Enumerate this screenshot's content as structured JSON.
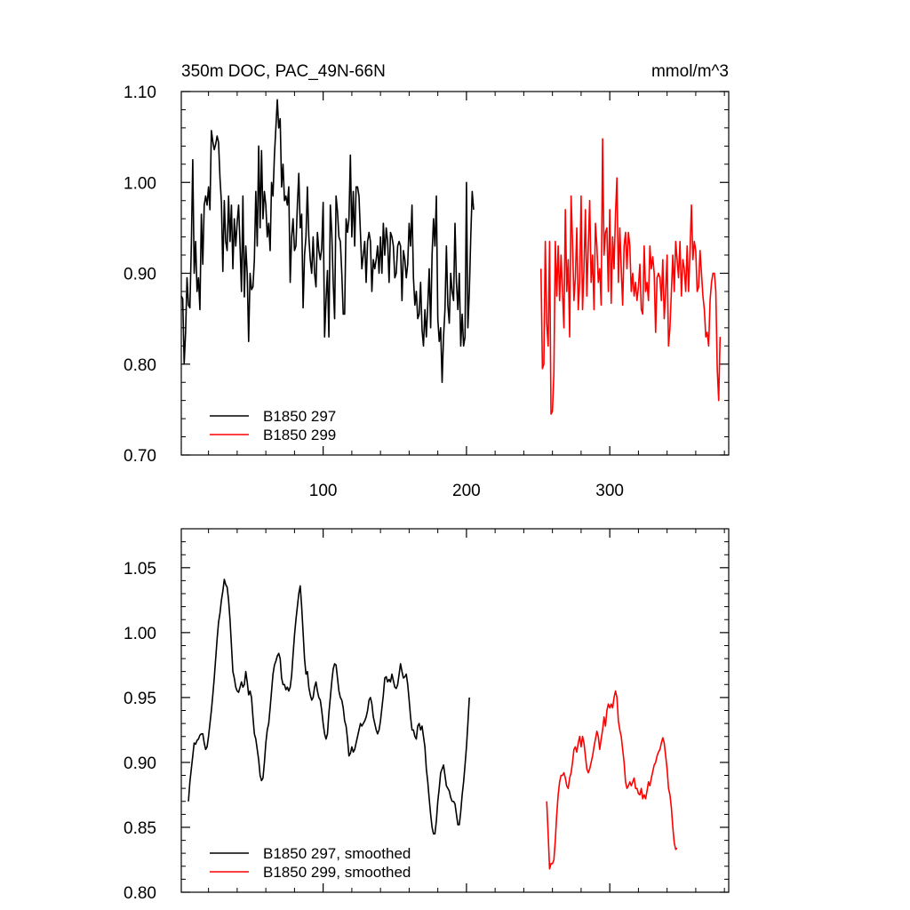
{
  "chart_data": [
    {
      "type": "line",
      "title": "350m DOC, PAC_49N-66N",
      "units": "mmol/m^3",
      "xlim": [
        1,
        383
      ],
      "ylim": [
        0.7,
        1.1
      ],
      "xticks": [
        100,
        200,
        300
      ],
      "xtick_labels": [
        "100",
        "200",
        "300"
      ],
      "yticks": [
        0.7,
        0.8,
        0.9,
        1.0,
        1.1
      ],
      "ytick_labels": [
        "0.70",
        "0.80",
        "0.90",
        "1.00",
        "1.10"
      ],
      "grid": false,
      "legend_position": "bottom-left",
      "series": [
        {
          "name": "B1850 297",
          "color": "#000000",
          "x_start": 1,
          "values": [
            0.875,
            0.872,
            0.8,
            0.835,
            0.895,
            0.865,
            0.862,
            0.93,
            1.025,
            0.9,
            0.935,
            0.88,
            0.895,
            0.86,
            0.965,
            0.91,
            0.975,
            0.985,
            0.975,
            0.995,
            0.97,
            1.057,
            1.045,
            1.036,
            1.042,
            1.051,
            1.044,
            1.005,
            0.978,
            0.902,
            0.98,
            0.935,
            0.925,
            0.985,
            0.935,
            0.975,
            0.905,
            0.96,
            0.93,
            0.956,
            0.975,
            0.93,
            0.88,
            0.985,
            0.874,
            0.93,
            0.9,
            0.825,
            0.9,
            0.882,
            0.885,
            0.915,
            0.99,
            0.93,
            1.04,
            0.95,
            1.035,
            0.96,
            0.99,
            0.975,
            0.94,
            0.955,
            0.925,
            1.0,
            0.985,
            1.03,
            1.06,
            1.091,
            1.06,
            1.07,
            0.995,
            1.02,
            0.98,
            0.985,
            0.975,
            0.995,
            0.89,
            0.94,
            0.96,
            0.925,
            0.93,
            0.975,
            1.01,
            0.95,
            0.965,
            0.862,
            0.92,
            0.94,
            0.995,
            0.94,
            0.915,
            0.9,
            0.94,
            0.9,
            0.885,
            0.945,
            0.925,
            0.915,
            0.928,
            0.978,
            0.83,
            0.87,
            0.903,
            0.83,
            0.975,
            0.945,
            0.89,
            0.85,
            0.985,
            0.968,
            0.94,
            0.935,
            0.9,
            0.855,
            0.855,
            0.96,
            0.945,
            0.96,
            1.03,
            0.94,
            0.99,
            0.93,
            0.995,
            0.995,
            0.985,
            0.945,
            0.905,
            0.92,
            0.935,
            0.89,
            0.935,
            0.945,
            0.935,
            0.88,
            0.915,
            0.905,
            0.915,
            0.93,
            0.9,
            0.94,
            0.9,
            0.955,
            0.92,
            0.95,
            0.935,
            0.89,
            0.945,
            0.94,
            0.93,
            0.895,
            0.9,
            0.93,
            0.935,
            0.93,
            0.87,
            0.925,
            0.915,
            0.895,
            0.91,
            0.955,
            0.93,
            0.975,
            0.895,
            0.865,
            0.88,
            0.85,
            0.855,
            0.89,
            0.838,
            0.82,
            0.86,
            0.83,
            0.865,
            0.905,
            0.84,
            0.92,
            0.96,
            0.93,
            0.985,
            0.85,
            0.825,
            0.84,
            0.78,
            0.83,
            0.86,
            0.93,
            0.865,
            0.845,
            0.9,
            0.88,
            0.87,
            0.955,
            0.89,
            0.86,
            0.9,
            0.82,
            0.855,
            0.82,
            0.83,
            1.0,
            0.84,
            0.88,
            0.94,
            0.99,
            0.97
          ],
          "x_offset": 0
        },
        {
          "name": "B1850 299",
          "color": "#ff0000",
          "x_start": 252,
          "values": [
            0.905,
            0.795,
            0.8,
            0.935,
            0.845,
            0.82,
            0.935,
            0.745,
            0.748,
            0.79,
            0.935,
            0.875,
            0.93,
            0.87,
            0.92,
            0.88,
            0.84,
            0.97,
            0.88,
            0.915,
            0.83,
            0.985,
            0.935,
            0.87,
            0.895,
            0.95,
            0.86,
            0.89,
            0.985,
            0.86,
            0.905,
            0.97,
            0.875,
            0.93,
            0.98,
            0.89,
            0.92,
            0.86,
            0.955,
            0.93,
            0.89,
            0.905,
            0.865,
            1.048,
            0.92,
            0.945,
            0.95,
            0.88,
            0.97,
            0.867,
            0.94,
            0.905,
            0.965,
            1.005,
            0.89,
            0.95,
            0.905,
            0.865,
            0.93,
            0.945,
            0.905,
            0.945,
            0.93,
            0.88,
            0.9,
            0.875,
            0.89,
            0.87,
            0.885,
            0.91,
            0.86,
            0.855,
            0.93,
            0.88,
            0.89,
            0.87,
            0.93,
            0.905,
            0.918,
            0.9,
            0.835,
            0.895,
            0.9,
            0.895,
            0.87,
            0.915,
            0.85,
            0.88,
            0.92,
            0.82,
            0.84,
            0.88,
            0.92,
            0.88,
            0.935,
            0.915,
            0.895,
            0.935,
            0.875,
            0.915,
            0.905,
            0.88,
            0.93,
            0.88,
            0.925,
            0.975,
            0.915,
            0.935,
            0.925,
            0.88,
            0.885,
            0.925,
            0.9,
            0.875,
            0.86,
            0.83,
            0.835,
            0.82,
            0.87,
            0.89,
            0.9,
            0.9,
            0.88,
            0.795,
            0.76,
            0.83
          ],
          "x_offset": 0
        }
      ]
    },
    {
      "type": "line",
      "title": "",
      "xlim": [
        1,
        383
      ],
      "ylim": [
        0.8,
        1.08
      ],
      "xticks": [
        100,
        200,
        300
      ],
      "yticks": [
        0.8,
        0.85,
        0.9,
        0.95,
        1.0,
        1.05
      ],
      "ytick_labels": [
        "0.80",
        "0.85",
        "0.90",
        "0.95",
        "1.00",
        "1.05"
      ],
      "grid": false,
      "legend_position": "bottom-left",
      "series": [
        {
          "name": "B1850 297, smoothed",
          "color": "#000000",
          "x_start": 6,
          "values": [
            0.87,
            0.885,
            0.895,
            0.905,
            0.915,
            0.914,
            0.917,
            0.918,
            0.921,
            0.922,
            0.922,
            0.915,
            0.91,
            0.912,
            0.92,
            0.93,
            0.94,
            0.952,
            0.965,
            0.98,
            0.995,
            1.008,
            1.015,
            1.025,
            1.032,
            1.041,
            1.037,
            1.035,
            1.025,
            1.01,
            0.99,
            0.97,
            0.965,
            0.958,
            0.955,
            0.954,
            0.958,
            0.962,
            0.958,
            0.96,
            0.97,
            0.962,
            0.952,
            0.955,
            0.95,
            0.935,
            0.922,
            0.918,
            0.91,
            0.902,
            0.89,
            0.886,
            0.888,
            0.9,
            0.915,
            0.925,
            0.93,
            0.942,
            0.955,
            0.968,
            0.975,
            0.978,
            0.982,
            0.984,
            0.98,
            0.965,
            0.96,
            0.96,
            0.956,
            0.958,
            0.955,
            0.958,
            0.967,
            0.983,
            0.998,
            1.01,
            1.02,
            1.03,
            1.036,
            1.02,
            1.0,
            0.98,
            0.968,
            0.97,
            0.958,
            0.952,
            0.948,
            0.95,
            0.958,
            0.962,
            0.955,
            0.95,
            0.948,
            0.94,
            0.93,
            0.922,
            0.918,
            0.922,
            0.938,
            0.95,
            0.962,
            0.972,
            0.976,
            0.975,
            0.965,
            0.955,
            0.95,
            0.948,
            0.942,
            0.932,
            0.928,
            0.918,
            0.905,
            0.907,
            0.912,
            0.908,
            0.91,
            0.915,
            0.92,
            0.925,
            0.93,
            0.928,
            0.93,
            0.932,
            0.935,
            0.94,
            0.948,
            0.95,
            0.945,
            0.935,
            0.93,
            0.925,
            0.922,
            0.925,
            0.932,
            0.942,
            0.952,
            0.965,
            0.966,
            0.962,
            0.964,
            0.962,
            0.968,
            0.963,
            0.958,
            0.957,
            0.96,
            0.968,
            0.976,
            0.97,
            0.965,
            0.966,
            0.968,
            0.96,
            0.948,
            0.935,
            0.925,
            0.925,
            0.92,
            0.918,
            0.928,
            0.93,
            0.925,
            0.928,
            0.92,
            0.912,
            0.895,
            0.885,
            0.872,
            0.86,
            0.85,
            0.845,
            0.845,
            0.855,
            0.87,
            0.88,
            0.892,
            0.895,
            0.898,
            0.89,
            0.882,
            0.88,
            0.878,
            0.873,
            0.87,
            0.87,
            0.868,
            0.86,
            0.852,
            0.852,
            0.862,
            0.875,
            0.885,
            0.898,
            0.912,
            0.93,
            0.95
          ]
        },
        {
          "name": "B1850 299, smoothed",
          "color": "#ff0000",
          "x_start": 256,
          "values": [
            0.87,
            0.845,
            0.818,
            0.822,
            0.822,
            0.825,
            0.84,
            0.86,
            0.875,
            0.885,
            0.89,
            0.89,
            0.892,
            0.888,
            0.882,
            0.88,
            0.888,
            0.892,
            0.9,
            0.91,
            0.912,
            0.908,
            0.915,
            0.92,
            0.912,
            0.92,
            0.915,
            0.905,
            0.895,
            0.892,
            0.895,
            0.9,
            0.905,
            0.912,
            0.918,
            0.924,
            0.92,
            0.91,
            0.918,
            0.925,
            0.935,
            0.928,
            0.94,
            0.945,
            0.942,
            0.945,
            0.942,
            0.95,
            0.955,
            0.95,
            0.932,
            0.925,
            0.92,
            0.91,
            0.9,
            0.885,
            0.88,
            0.882,
            0.885,
            0.882,
            0.885,
            0.888,
            0.88,
            0.88,
            0.876,
            0.875,
            0.88,
            0.872,
            0.875,
            0.872,
            0.878,
            0.885,
            0.882,
            0.888,
            0.893,
            0.898,
            0.9,
            0.905,
            0.908,
            0.91,
            0.915,
            0.919,
            0.915,
            0.905,
            0.895,
            0.88,
            0.875,
            0.865,
            0.85,
            0.838,
            0.833,
            0.834
          ]
        }
      ]
    }
  ]
}
